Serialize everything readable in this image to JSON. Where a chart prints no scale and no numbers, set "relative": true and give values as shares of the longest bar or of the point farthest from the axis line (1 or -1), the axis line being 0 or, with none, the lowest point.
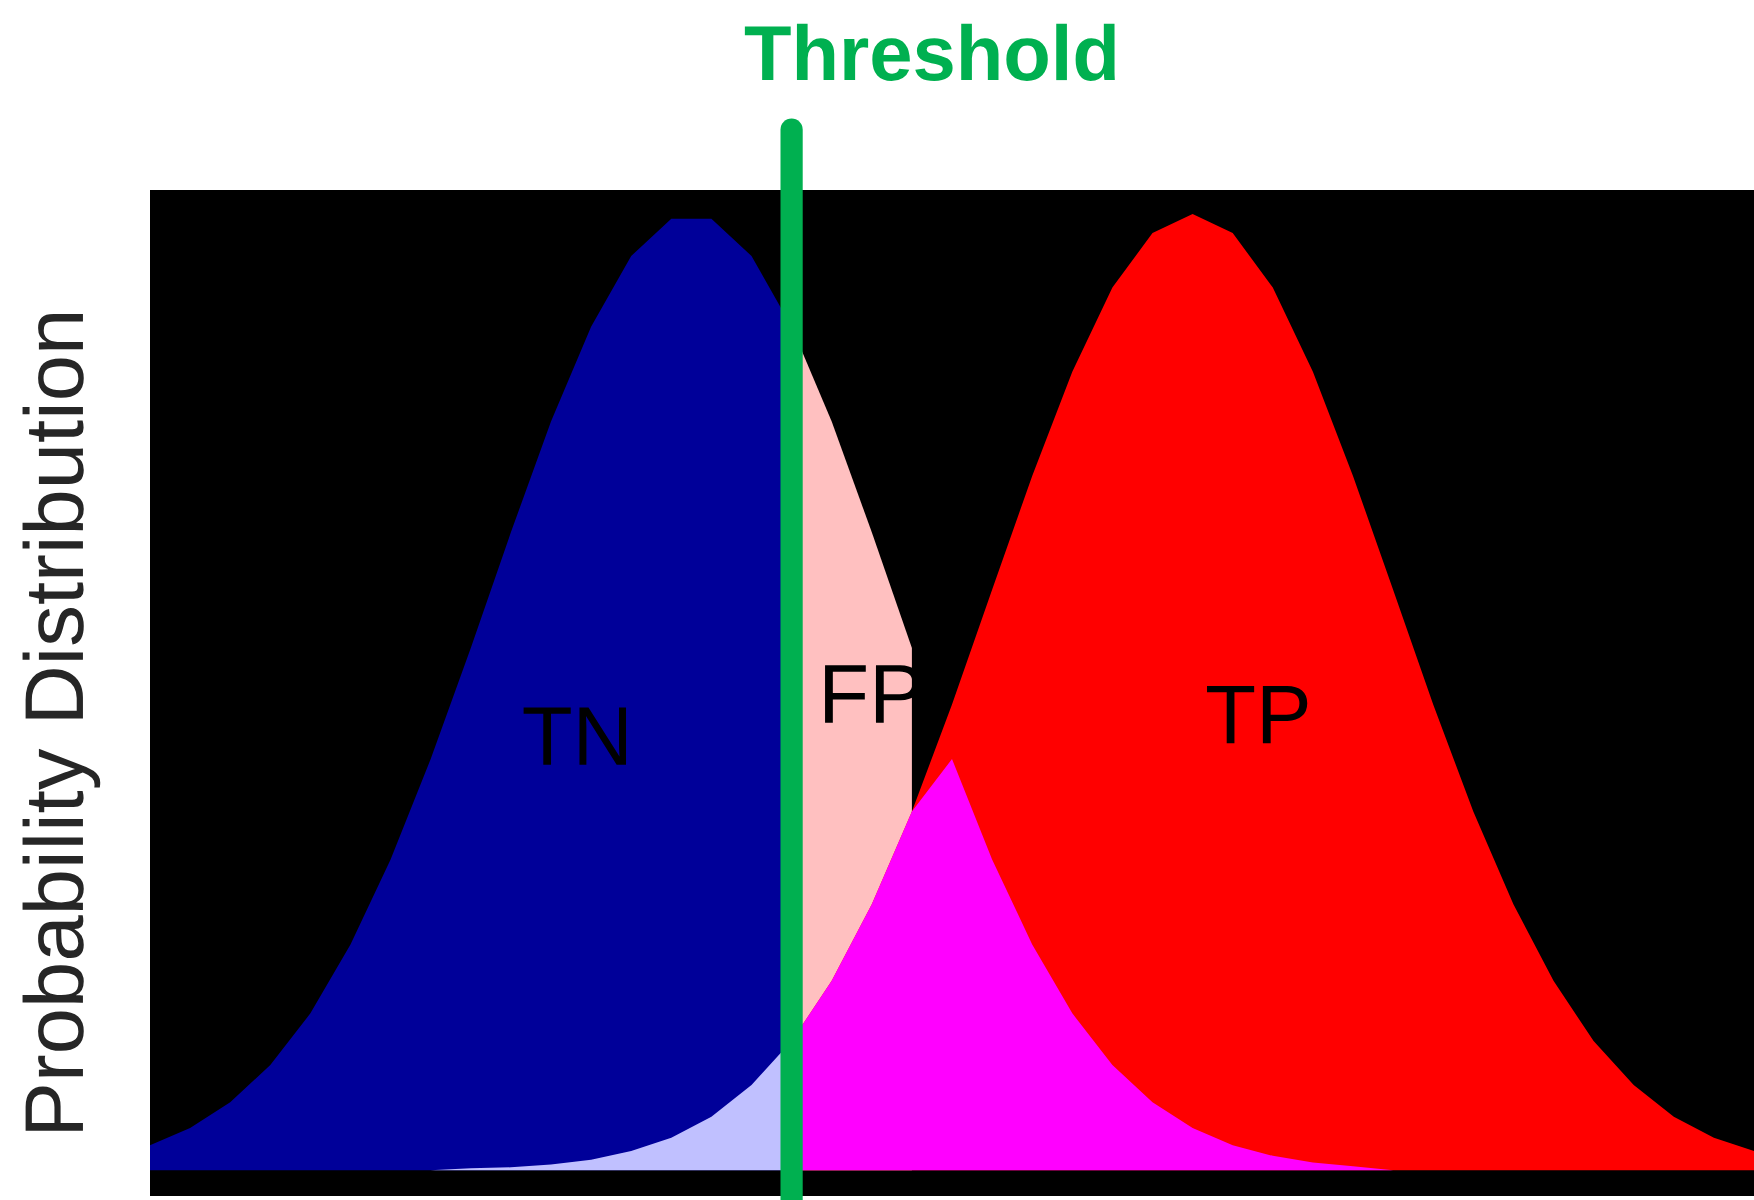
{
  "chart_data": {
    "type": "area",
    "relative": true,
    "ylabel": "Probability Distribution",
    "categories": [
      null,
      null,
      null,
      null,
      null,
      null,
      null,
      null,
      null,
      null,
      null,
      null,
      null,
      null,
      null,
      null,
      null,
      null,
      null,
      null,
      null,
      null,
      null,
      null,
      null,
      null,
      null,
      null,
      null,
      null,
      null,
      null,
      null,
      null,
      null,
      null,
      null,
      null,
      null,
      null,
      null
    ],
    "series": [
      {
        "name": "TN",
        "color": "#000099",
        "values": [
          0.026,
          0.044,
          0.071,
          0.11,
          0.164,
          0.236,
          0.325,
          0.43,
          0.546,
          0.667,
          0.783,
          0.882,
          0.956,
          0.995,
          0.995,
          0.956,
          0.882,
          null,
          null,
          null,
          null,
          null,
          null,
          null,
          null,
          null,
          null,
          null,
          null,
          null,
          null,
          null,
          null,
          null,
          null,
          null,
          null,
          null,
          null,
          null,
          null
        ]
      },
      {
        "color": "#c0c0ff",
        "values": [
          0,
          0,
          0,
          0,
          0,
          0,
          0,
          0,
          0.002,
          0.003,
          0.006,
          0.011,
          0.02,
          0.034,
          0.056,
          0.089,
          0.135,
          null,
          null,
          null,
          null,
          null,
          null,
          null,
          null,
          null,
          null,
          null,
          null,
          null,
          null,
          null,
          null,
          null,
          null,
          null,
          null,
          null,
          null,
          null,
          null
        ]
      },
      {
        "name": "FP",
        "color": "#ffc0c0",
        "values": [
          null,
          null,
          null,
          null,
          null,
          null,
          null,
          null,
          null,
          null,
          null,
          null,
          null,
          null,
          null,
          null,
          0.882,
          0.783,
          0.667,
          0.546,
          null,
          null,
          null,
          null,
          null,
          null,
          null,
          null,
          null,
          null,
          null,
          null,
          null,
          null,
          null,
          null,
          null,
          null,
          null,
          null,
          null
        ]
      },
      {
        "name": "TP",
        "color": "#ff0000",
        "values": [
          null,
          null,
          null,
          null,
          null,
          null,
          null,
          null,
          null,
          null,
          null,
          null,
          null,
          null,
          null,
          null,
          0.135,
          0.198,
          0.278,
          0.375,
          0.487,
          0.607,
          0.726,
          0.835,
          0.923,
          0.98,
          1,
          0.98,
          0.923,
          0.835,
          0.726,
          0.607,
          0.487,
          0.375,
          0.278,
          0.198,
          0.135,
          0.089,
          0.056,
          0.034,
          0.02
        ]
      },
      {
        "color": "#ff00ff",
        "values": [
          null,
          null,
          null,
          null,
          null,
          null,
          null,
          null,
          null,
          null,
          null,
          null,
          null,
          null,
          null,
          null,
          0.135,
          0.198,
          0.278,
          0.375,
          0.43,
          0.325,
          0.236,
          0.164,
          0.11,
          0.071,
          0.044,
          0.026,
          0.015,
          0.008,
          0.004,
          0,
          0,
          0,
          0,
          0,
          0,
          0,
          0,
          0,
          0
        ]
      }
    ],
    "annotations": [
      "Threshold"
    ]
  }
}
